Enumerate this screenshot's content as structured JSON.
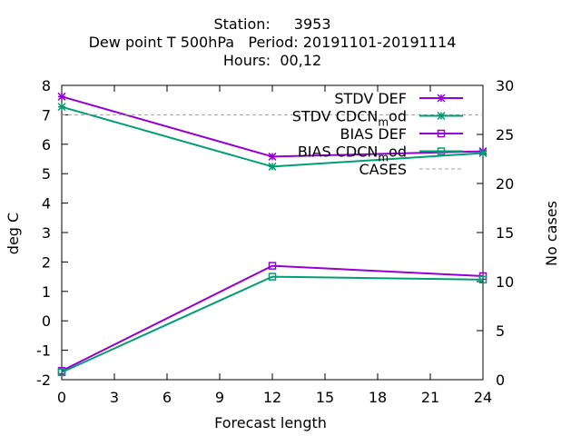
{
  "title": {
    "station_label": "Station:",
    "station_value": "3953",
    "line2": "Dew point T 500hPa   Period: 20191101-20191114",
    "line3": "Hours:  00,12"
  },
  "chart_data": {
    "type": "line",
    "xlabel": "Forecast length",
    "ylabel": "deg C",
    "y2label": "No cases",
    "xlim": [
      0,
      24
    ],
    "ylim": [
      -2,
      8
    ],
    "y2lim": [
      0,
      30
    ],
    "xticks": [
      0,
      3,
      6,
      9,
      12,
      15,
      18,
      21,
      24
    ],
    "yticks": [
      -2,
      -1,
      0,
      1,
      2,
      3,
      4,
      5,
      6,
      7,
      8
    ],
    "y2ticks": [
      0,
      5,
      10,
      15,
      20,
      25,
      30
    ],
    "legend_position": "top-right",
    "grid": false,
    "series": [
      {
        "name": "STDV DEF",
        "axis": "y",
        "color": "#9400d3",
        "marker": "x-star",
        "x": [
          0,
          12,
          24
        ],
        "y": [
          7.62,
          5.58,
          5.76
        ]
      },
      {
        "name": "STDV CDCN_mod",
        "axis": "y",
        "color": "#009e73",
        "marker": "x-star",
        "x": [
          0,
          12,
          24
        ],
        "y": [
          7.27,
          5.24,
          5.7
        ]
      },
      {
        "name": "BIAS DEF",
        "axis": "y",
        "color": "#9400d3",
        "marker": "square",
        "x": [
          0,
          12,
          24
        ],
        "y": [
          -1.7,
          1.87,
          1.52
        ]
      },
      {
        "name": "BIAS CDCN_mod",
        "axis": "y",
        "color": "#009e73",
        "marker": "square",
        "x": [
          0,
          12,
          24
        ],
        "y": [
          -1.75,
          1.5,
          1.4
        ]
      },
      {
        "name": "CASES",
        "axis": "y2",
        "color": "#a0a0a0",
        "marker": "none",
        "dashed": true,
        "x": [
          0,
          12,
          24
        ],
        "y": [
          27,
          27,
          27
        ]
      }
    ]
  }
}
